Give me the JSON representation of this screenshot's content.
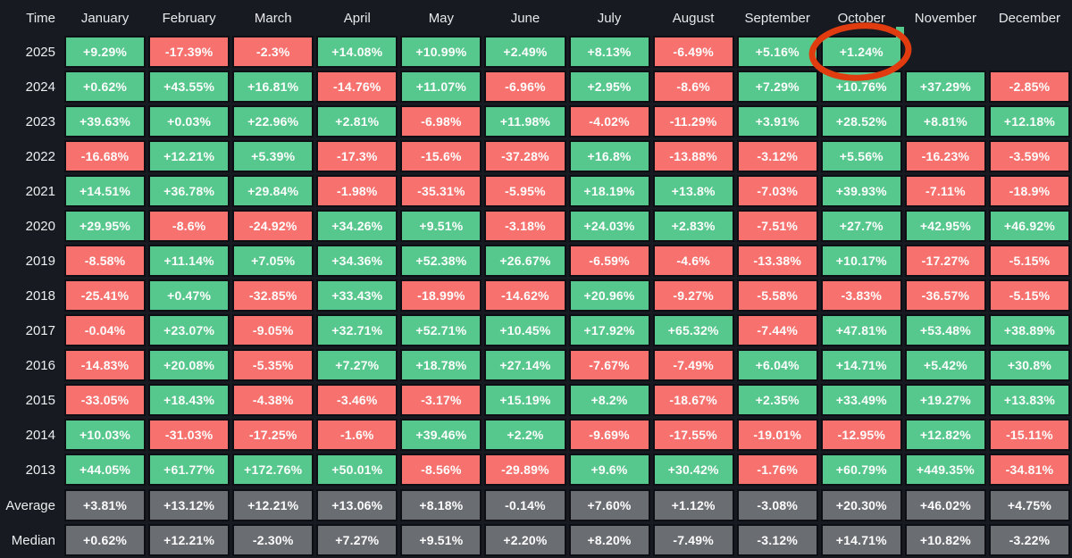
{
  "colors": {
    "positive": "#57c88d",
    "negative": "#f7726e",
    "neutral_summary": "#6a6d72",
    "background": "#171a21",
    "cell_border": "#0d0f14",
    "header_text": "#e7e9eb",
    "cell_text": "#fdfdfd",
    "annotation_circle": "#e13b10"
  },
  "chart_data": {
    "type": "heatmap",
    "title": "Monthly returns heatmap by year",
    "corner_label": "Time",
    "columns": [
      "January",
      "February",
      "March",
      "April",
      "May",
      "June",
      "July",
      "August",
      "September",
      "October",
      "November",
      "December"
    ],
    "rows": [
      {
        "label": "2025",
        "kind": "year",
        "values": [
          "+9.29%",
          "-17.39%",
          "-2.3%",
          "+14.08%",
          "+10.99%",
          "+2.49%",
          "+8.13%",
          "-6.49%",
          "+5.16%",
          "+1.24%",
          "",
          ""
        ]
      },
      {
        "label": "2024",
        "kind": "year",
        "values": [
          "+0.62%",
          "+43.55%",
          "+16.81%",
          "-14.76%",
          "+11.07%",
          "-6.96%",
          "+2.95%",
          "-8.6%",
          "+7.29%",
          "+10.76%",
          "+37.29%",
          "-2.85%"
        ]
      },
      {
        "label": "2023",
        "kind": "year",
        "values": [
          "+39.63%",
          "+0.03%",
          "+22.96%",
          "+2.81%",
          "-6.98%",
          "+11.98%",
          "-4.02%",
          "-11.29%",
          "+3.91%",
          "+28.52%",
          "+8.81%",
          "+12.18%"
        ]
      },
      {
        "label": "2022",
        "kind": "year",
        "values": [
          "-16.68%",
          "+12.21%",
          "+5.39%",
          "-17.3%",
          "-15.6%",
          "-37.28%",
          "+16.8%",
          "-13.88%",
          "-3.12%",
          "+5.56%",
          "-16.23%",
          "-3.59%"
        ]
      },
      {
        "label": "2021",
        "kind": "year",
        "values": [
          "+14.51%",
          "+36.78%",
          "+29.84%",
          "-1.98%",
          "-35.31%",
          "-5.95%",
          "+18.19%",
          "+13.8%",
          "-7.03%",
          "+39.93%",
          "-7.11%",
          "-18.9%"
        ]
      },
      {
        "label": "2020",
        "kind": "year",
        "values": [
          "+29.95%",
          "-8.6%",
          "-24.92%",
          "+34.26%",
          "+9.51%",
          "-3.18%",
          "+24.03%",
          "+2.83%",
          "-7.51%",
          "+27.7%",
          "+42.95%",
          "+46.92%"
        ]
      },
      {
        "label": "2019",
        "kind": "year",
        "values": [
          "-8.58%",
          "+11.14%",
          "+7.05%",
          "+34.36%",
          "+52.38%",
          "+26.67%",
          "-6.59%",
          "-4.6%",
          "-13.38%",
          "+10.17%",
          "-17.27%",
          "-5.15%"
        ]
      },
      {
        "label": "2018",
        "kind": "year",
        "values": [
          "-25.41%",
          "+0.47%",
          "-32.85%",
          "+33.43%",
          "-18.99%",
          "-14.62%",
          "+20.96%",
          "-9.27%",
          "-5.58%",
          "-3.83%",
          "-36.57%",
          "-5.15%"
        ]
      },
      {
        "label": "2017",
        "kind": "year",
        "values": [
          "-0.04%",
          "+23.07%",
          "-9.05%",
          "+32.71%",
          "+52.71%",
          "+10.45%",
          "+17.92%",
          "+65.32%",
          "-7.44%",
          "+47.81%",
          "+53.48%",
          "+38.89%"
        ]
      },
      {
        "label": "2016",
        "kind": "year",
        "values": [
          "-14.83%",
          "+20.08%",
          "-5.35%",
          "+7.27%",
          "+18.78%",
          "+27.14%",
          "-7.67%",
          "-7.49%",
          "+6.04%",
          "+14.71%",
          "+5.42%",
          "+30.8%"
        ]
      },
      {
        "label": "2015",
        "kind": "year",
        "values": [
          "-33.05%",
          "+18.43%",
          "-4.38%",
          "-3.46%",
          "-3.17%",
          "+15.19%",
          "+8.2%",
          "-18.67%",
          "+2.35%",
          "+33.49%",
          "+19.27%",
          "+13.83%"
        ]
      },
      {
        "label": "2014",
        "kind": "year",
        "values": [
          "+10.03%",
          "-31.03%",
          "-17.25%",
          "-1.6%",
          "+39.46%",
          "+2.2%",
          "-9.69%",
          "-17.55%",
          "-19.01%",
          "-12.95%",
          "+12.82%",
          "-15.11%"
        ]
      },
      {
        "label": "2013",
        "kind": "year",
        "values": [
          "+44.05%",
          "+61.77%",
          "+172.76%",
          "+50.01%",
          "-8.56%",
          "-29.89%",
          "+9.6%",
          "+30.42%",
          "-1.76%",
          "+60.79%",
          "+449.35%",
          "-34.81%"
        ]
      },
      {
        "label": "Average",
        "kind": "summary",
        "values": [
          "+3.81%",
          "+13.12%",
          "+12.21%",
          "+13.06%",
          "+8.18%",
          "-0.14%",
          "+7.60%",
          "+1.12%",
          "-3.08%",
          "+20.30%",
          "+46.02%",
          "+4.75%"
        ]
      },
      {
        "label": "Median",
        "kind": "summary",
        "values": [
          "+0.62%",
          "+12.21%",
          "-2.30%",
          "+7.27%",
          "+9.51%",
          "+2.20%",
          "+8.20%",
          "-7.49%",
          "-3.12%",
          "+14.71%",
          "+10.82%",
          "-3.22%"
        ]
      }
    ],
    "annotation": {
      "shape": "hand-drawn circle",
      "row": "2025",
      "column": "October",
      "value": "+1.24%",
      "color": "#e13b10"
    },
    "legend_position": "none",
    "grid": "off"
  }
}
